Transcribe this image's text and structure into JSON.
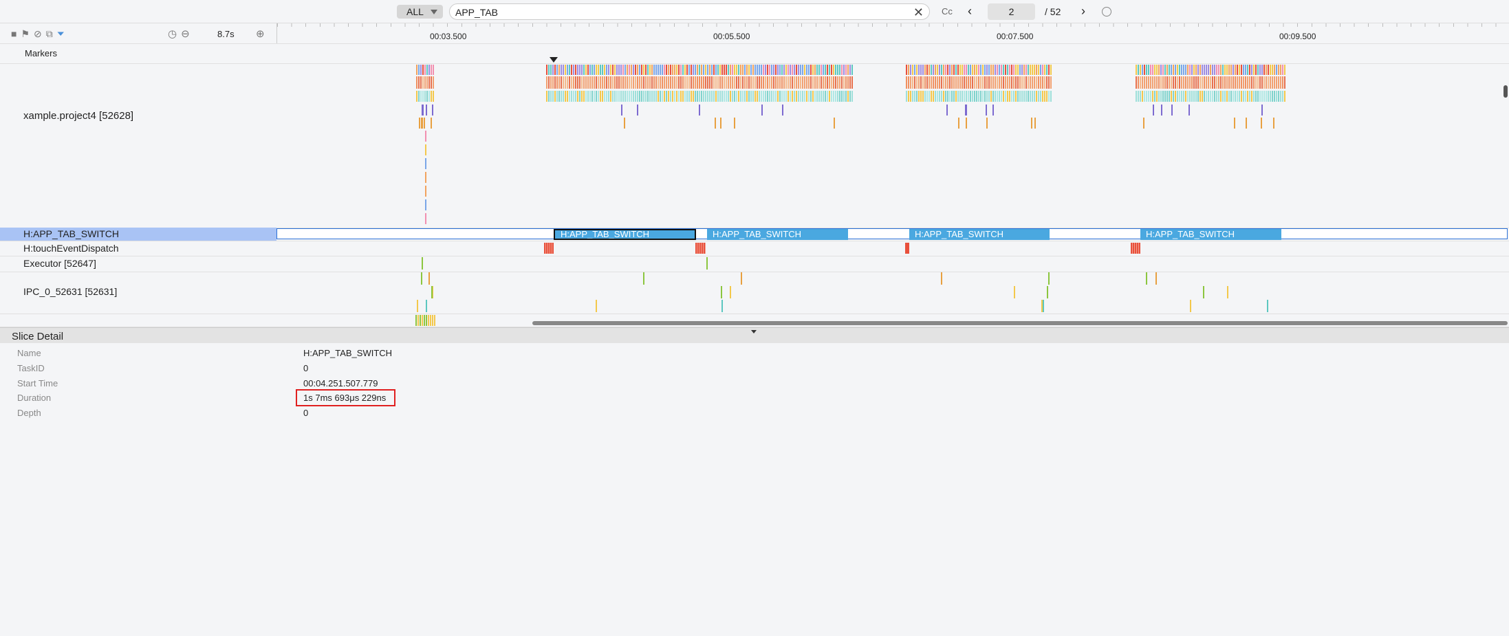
{
  "search": {
    "filter": "ALL",
    "query": "APP_TAB",
    "case_toggle": "Cc",
    "current": "2",
    "total": "/ 52"
  },
  "toolbar": {
    "zoom": "8.7s"
  },
  "timeline": {
    "ticks": [
      "00:03.500",
      "00:05.500",
      "00:07.500",
      "00:09.500"
    ]
  },
  "tracks": {
    "markers": "Markers",
    "process": "xample.project4 [52628]",
    "app_tab_switch": "H:APP_TAB_SWITCH",
    "touch": "H:touchEventDispatch",
    "executor": "Executor [52647]",
    "ipc": "IPC_0_52631 [52631]"
  },
  "slices": [
    "H:APP_TAB_SWITCH",
    "H:APP_TAB_SWITCH",
    "H:APP_TAB_SWITCH",
    "H:APP_TAB_SWITCH"
  ],
  "slice_detail": {
    "title": "Slice Detail",
    "fields": [
      {
        "label": "Name",
        "value": "H:APP_TAB_SWITCH"
      },
      {
        "label": "TaskID",
        "value": "0"
      },
      {
        "label": "Start Time",
        "value": "00:04.251.507.779"
      },
      {
        "label": "Duration",
        "value": "1s 7ms 693μs 229ns"
      },
      {
        "label": "Depth",
        "value": "0"
      }
    ]
  }
}
